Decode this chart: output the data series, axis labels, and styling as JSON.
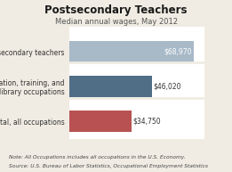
{
  "title": "Postsecondary Teachers",
  "subtitle": "Median annual wages, May 2012",
  "categories": [
    "Postsecondary teachers",
    "Education, training, and\nlibrary occupations",
    "Total, all occupations"
  ],
  "values": [
    68970,
    46020,
    34750
  ],
  "labels": [
    "$68,970",
    "$46,020",
    "$34,750"
  ],
  "bar_colors": [
    "#a8b9c8",
    "#516e87",
    "#b85252"
  ],
  "xlim": [
    0,
    75000
  ],
  "note": "Note: All Occupations includes all occupations in the U.S. Economy.",
  "source": "Source: U.S. Bureau of Labor Statistics, Occupational Employment Statistics",
  "bg_color": "#f0ece3",
  "plot_bg": "#ffffff",
  "title_fontsize": 8.5,
  "subtitle_fontsize": 6,
  "label_fontsize": 5.5,
  "note_fontsize": 4.2,
  "bar_label_inside_color": "#ffffff",
  "bar_label_outside_color": "#333333"
}
